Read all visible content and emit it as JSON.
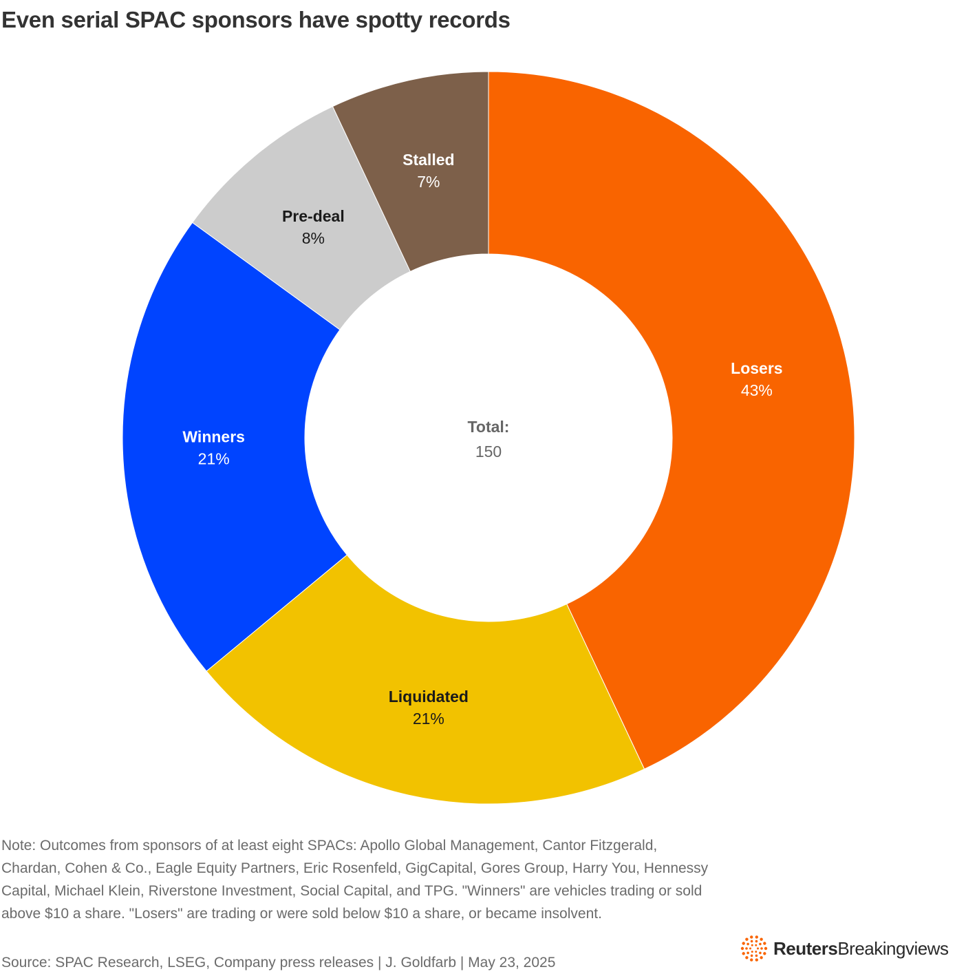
{
  "title": "Even serial SPAC sponsors have spotty records",
  "chart_data": {
    "type": "pie",
    "title": "Even serial SPAC sponsors have spotty records",
    "donut": true,
    "center_label": "Total:",
    "center_value": "150",
    "slices": [
      {
        "label": "Losers",
        "value": 43,
        "display": "43%",
        "color": "#f96400",
        "text_color": "#ffffff"
      },
      {
        "label": "Liquidated",
        "value": 21,
        "display": "21%",
        "color": "#f2c200",
        "text_color": "#1a1a1a"
      },
      {
        "label": "Winners",
        "value": 21,
        "display": "21%",
        "color": "#0044ff",
        "text_color": "#ffffff"
      },
      {
        "label": "Pre-deal",
        "value": 8,
        "display": "8%",
        "color": "#cccccc",
        "text_color": "#1a1a1a"
      },
      {
        "label": "Stalled",
        "value": 7,
        "display": "7%",
        "color": "#7d604a",
        "text_color": "#ffffff"
      }
    ]
  },
  "note": "Note: Outcomes from sponsors of at least eight SPACs: Apollo Global Management, Cantor Fitzgerald, Chardan, Cohen & Co., Eagle Equity Partners, Eric Rosenfeld, GigCapital, Gores Group, Harry You, Hennessy Capital, Michael Klein, Riverstone Investment, Social Capital, and TPG. \"Winners\" are vehicles trading or sold above $10 a share. \"Losers\" are trading or were sold below $10 a share, or became insolvent.",
  "source": "Source: SPAC Research, LSEG, Company press releases | J. Goldfarb | May 23, 2025",
  "logo": {
    "brand": "Reuters",
    "product": "Breakingviews",
    "icon": "reuters-dot-ring-icon",
    "accent": "#f96400"
  }
}
